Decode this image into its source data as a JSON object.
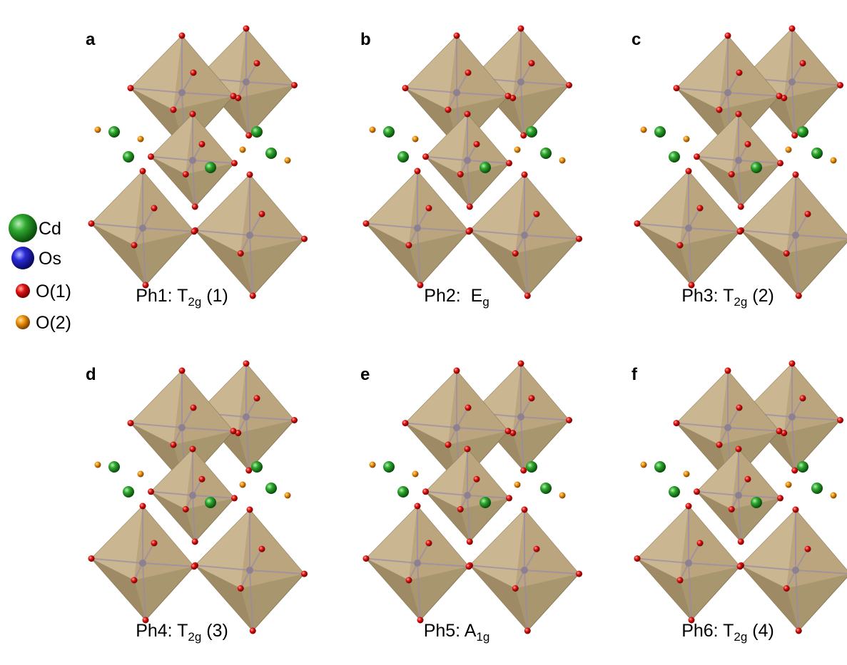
{
  "panels": [
    {
      "label": "a",
      "caption": {
        "main": "Ph1: T",
        "sub": "2g",
        "tail": " (1)"
      }
    },
    {
      "label": "b",
      "caption": {
        "main": "Ph2:  E",
        "sub": "g"
      }
    },
    {
      "label": "c",
      "caption": {
        "main": "Ph3: T",
        "sub": "2g",
        "tail": " (2)"
      }
    },
    {
      "label": "d",
      "caption": {
        "main": "Ph4: T",
        "sub": "2g",
        "tail": " (3)"
      }
    },
    {
      "label": "e",
      "caption": {
        "main": "Ph5: A",
        "sub": "1g"
      }
    },
    {
      "label": "f",
      "caption": {
        "main": "Ph6: T",
        "sub": "2g",
        "tail": " (4)"
      }
    }
  ],
  "legend": [
    {
      "label": "Cd"
    },
    {
      "label": "Os"
    },
    {
      "label": "O(1)"
    },
    {
      "label": "O(2)"
    }
  ]
}
